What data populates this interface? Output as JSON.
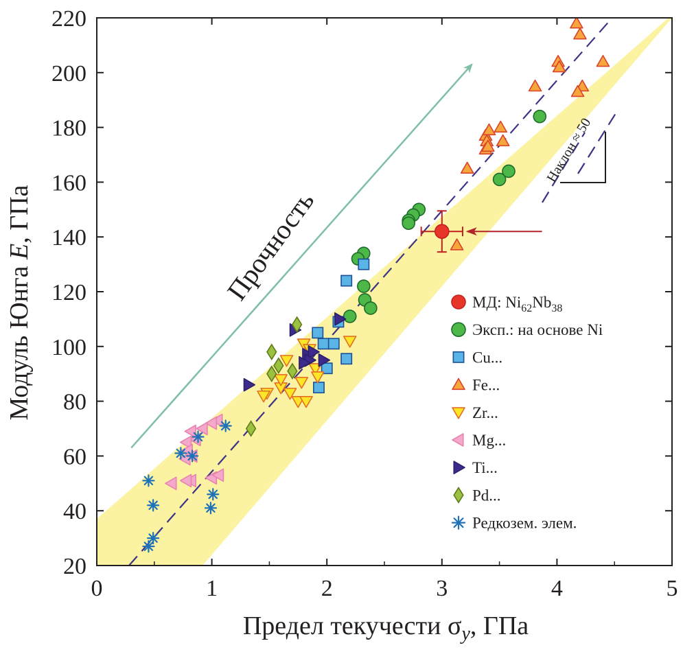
{
  "chart_data": {
    "type": "scatter",
    "title": "",
    "xlabel": "Предел текучести σy, ГПа",
    "xlabel_main": "Предел текучести σ",
    "xlabel_sub": "y",
    "xlabel_unit": ", ГПа",
    "ylabel": "Модуль Юнга E, ГПа",
    "ylabel_main": "Модуль Юнга ",
    "ylabel_var": "E",
    "ylabel_unit": ", ГПа",
    "xlim": [
      0,
      5
    ],
    "ylim": [
      20,
      220
    ],
    "xticks": [
      0,
      1,
      2,
      3,
      4,
      5
    ],
    "yticks": [
      20,
      40,
      60,
      80,
      100,
      120,
      140,
      160,
      180,
      200,
      220
    ],
    "grid": false,
    "legend_position": "right-middle",
    "annotations": {
      "strength_label": "Прочность",
      "slope_label": "Наклон ≈ 50"
    },
    "band": {
      "lower_line": [
        [
          0.92,
          20
        ],
        [
          5.0,
          220
        ]
      ],
      "upper_line": [
        [
          0.0,
          37
        ],
        [
          4.97,
          220
        ]
      ],
      "color": "#fbf3a2"
    },
    "fit_line": {
      "points": [
        [
          0.28,
          20
        ],
        [
          4.48,
          220
        ]
      ],
      "color": "#3d3287"
    },
    "strength_arrow": {
      "from": [
        0.3,
        63
      ],
      "to": [
        3.26,
        203
      ],
      "color": "#7fbfa4"
    },
    "highlight_arrow": {
      "from": [
        3.87,
        142
      ],
      "to": [
        3.22,
        142
      ],
      "color": "#b2242a"
    },
    "series": [
      {
        "name": "МД: Ni62Nb38",
        "legend_main": "МД: Ni",
        "legend_sub1": "62",
        "legend_mid": "Nb",
        "legend_sub2": "38",
        "marker": "circle",
        "color": "#e8352a",
        "edge": "#c22020",
        "points": [
          [
            3.0,
            142
          ]
        ],
        "xerr": 0.18,
        "yerr": 7.5
      },
      {
        "name": "Эксп.: на основе Ni",
        "marker": "circle",
        "color": "#4db848",
        "edge": "#1d6b2b",
        "points": [
          [
            3.85,
            184
          ],
          [
            3.58,
            164
          ],
          [
            3.5,
            161
          ],
          [
            2.8,
            150
          ],
          [
            2.75,
            148
          ],
          [
            2.71,
            146
          ],
          [
            2.71,
            145
          ],
          [
            2.32,
            134
          ],
          [
            2.27,
            132
          ],
          [
            2.32,
            122
          ],
          [
            2.33,
            117
          ],
          [
            2.38,
            114
          ],
          [
            2.2,
            111
          ]
        ]
      },
      {
        "name": "Cu...",
        "marker": "square",
        "color": "#5ab4e5",
        "edge": "#1c4f96",
        "points": [
          [
            2.32,
            130
          ],
          [
            2.17,
            124
          ],
          [
            2.1,
            109
          ],
          [
            1.92,
            105
          ],
          [
            1.97,
            101
          ],
          [
            2.06,
            101
          ],
          [
            2.17,
            95.5
          ],
          [
            2.0,
            92
          ],
          [
            1.93,
            85
          ]
        ]
      },
      {
        "name": "Fe...",
        "marker": "triangle-up",
        "color": "#f7a63d",
        "edge": "#d8432a",
        "points": [
          [
            4.17,
            218
          ],
          [
            4.2,
            214
          ],
          [
            4.01,
            204
          ],
          [
            4.02,
            202
          ],
          [
            4.4,
            204
          ],
          [
            3.81,
            195
          ],
          [
            4.22,
            195
          ],
          [
            4.18,
            193
          ],
          [
            3.38,
            177
          ],
          [
            3.41,
            179
          ],
          [
            3.51,
            180
          ],
          [
            3.39,
            175
          ],
          [
            3.53,
            175
          ],
          [
            3.38,
            172
          ],
          [
            3.4,
            173
          ],
          [
            3.22,
            165
          ],
          [
            3.13,
            137
          ]
        ]
      },
      {
        "name": "Zr...",
        "marker": "triangle-down",
        "color": "#fde626",
        "edge": "#e36f27",
        "points": [
          [
            2.2,
            102
          ],
          [
            1.8,
            101
          ],
          [
            1.85,
            99
          ],
          [
            1.65,
            95
          ],
          [
            1.9,
            92
          ],
          [
            1.92,
            89
          ],
          [
            1.6,
            85
          ],
          [
            1.68,
            83
          ],
          [
            1.78,
            87
          ],
          [
            1.48,
            83
          ],
          [
            1.45,
            82
          ],
          [
            1.75,
            80
          ],
          [
            1.82,
            80
          ],
          [
            1.6,
            88
          ]
        ]
      },
      {
        "name": "Mg...",
        "marker": "triangle-left",
        "color": "#f4a9cb",
        "edge": "#e883b0",
        "points": [
          [
            1.05,
            73
          ],
          [
            1.0,
            72
          ],
          [
            0.92,
            70
          ],
          [
            0.82,
            69
          ],
          [
            0.86,
            66
          ],
          [
            0.78,
            65
          ],
          [
            0.79,
            62
          ],
          [
            0.83,
            60
          ],
          [
            0.77,
            59
          ],
          [
            0.65,
            50
          ],
          [
            0.82,
            51
          ],
          [
            1.0,
            52
          ],
          [
            1.06,
            53
          ],
          [
            0.78,
            51
          ]
        ]
      },
      {
        "name": "Ti...",
        "marker": "triangle-right",
        "color": "#3e2a8a",
        "edge": "#2a1f6b",
        "points": [
          [
            1.32,
            86
          ],
          [
            1.72,
            106
          ],
          [
            2.11,
            110
          ],
          [
            1.83,
            97
          ],
          [
            1.88,
            98
          ],
          [
            1.85,
            95
          ],
          [
            1.97,
            95
          ],
          [
            1.8,
            94
          ]
        ]
      },
      {
        "name": "Pd...",
        "marker": "diamond",
        "color": "#9bc140",
        "edge": "#5f7a1b",
        "points": [
          [
            1.74,
            108
          ],
          [
            1.52,
            98
          ],
          [
            1.58,
            93
          ],
          [
            1.52,
            90
          ],
          [
            1.7,
            91
          ],
          [
            1.34,
            70
          ]
        ]
      },
      {
        "name": "Редкозем. элем.",
        "marker": "asterisk",
        "color": "#1f72b8",
        "edge": "#1f72b8",
        "points": [
          [
            1.12,
            71
          ],
          [
            0.88,
            67
          ],
          [
            0.73,
            61
          ],
          [
            0.83,
            60
          ],
          [
            0.45,
            51
          ],
          [
            1.01,
            46
          ],
          [
            0.49,
            42
          ],
          [
            0.99,
            41
          ],
          [
            0.49,
            30
          ],
          [
            0.45,
            27
          ]
        ]
      }
    ]
  }
}
